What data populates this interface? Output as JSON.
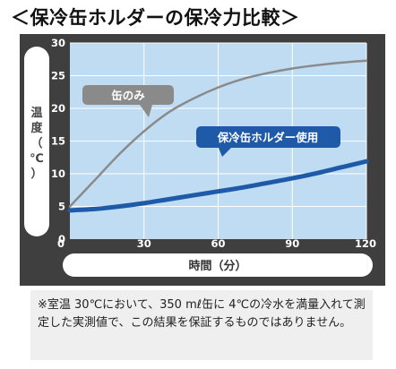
{
  "title": "＜保冷缶ホルダーの保冷力比較＞",
  "colors": {
    "panel": "#3f3f3f",
    "plot": "#bfdcf2",
    "grid": "#ffffff",
    "series_can": "#8a8a8a",
    "series_holder": "#1e5aa8"
  },
  "chart_data": {
    "type": "line",
    "ylabel": "温度（℃）",
    "xlabel": "時間（分）",
    "xlim": [
      0,
      120
    ],
    "ylim": [
      0,
      30
    ],
    "x_ticks": [
      "0",
      "30",
      "60",
      "90",
      "120"
    ],
    "y_ticks": [
      "0",
      "5",
      "10",
      "15",
      "20",
      "25",
      "30"
    ],
    "grid": true,
    "series": [
      {
        "name": "缶のみ",
        "x": [
          0,
          10,
          20,
          30,
          40,
          50,
          60,
          70,
          80,
          90,
          100,
          110,
          120
        ],
        "values": [
          5.0,
          9.0,
          13.0,
          16.5,
          19.4,
          21.5,
          23.2,
          24.5,
          25.4,
          26.1,
          26.6,
          27.0,
          27.3
        ]
      },
      {
        "name": "保冷缶ホルダー使用",
        "x": [
          0,
          10,
          20,
          30,
          40,
          50,
          60,
          70,
          80,
          90,
          100,
          110,
          120
        ],
        "values": [
          4.4,
          4.6,
          5.0,
          5.5,
          6.1,
          6.7,
          7.3,
          7.9,
          8.6,
          9.3,
          10.1,
          11.0,
          11.9
        ]
      }
    ]
  },
  "note": "※室温 30℃において、350 mℓ缶に 4℃の冷水を満量入れて測定した実測値で、この結果を保証するものではありません。"
}
